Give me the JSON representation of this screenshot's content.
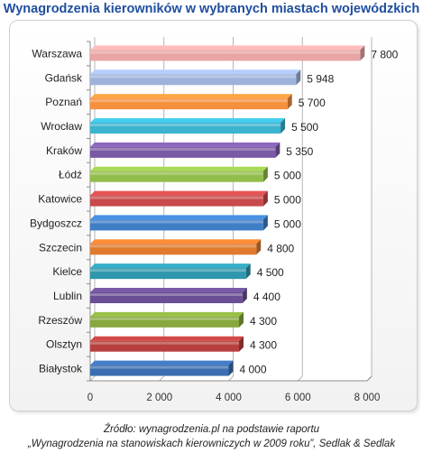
{
  "chart_data": {
    "type": "bar",
    "orientation": "horizontal",
    "title": "Wynagrodzenia kierowników w wybranych miastach wojewódzkich",
    "categories": [
      "Warszawa",
      "Gdańsk",
      "Poznań",
      "Wrocław",
      "Kraków",
      "Łódź",
      "Katowice",
      "Bydgoszcz",
      "Szczecin",
      "Kielce",
      "Lublin",
      "Rzeszów",
      "Olsztyn",
      "Białystok"
    ],
    "values": [
      7800,
      5948,
      5700,
      5500,
      5350,
      5000,
      5000,
      5000,
      4800,
      4500,
      4400,
      4300,
      4300,
      4000
    ],
    "value_labels": [
      "7 800",
      "5 948",
      "5 700",
      "5 500",
      "5 350",
      "5 000",
      "5 000",
      "5 000",
      "4 800",
      "4 500",
      "4 400",
      "4 300",
      "4 300",
      "4 000"
    ],
    "colors": [
      "#e8a5a4",
      "#9eb3db",
      "#f5903d",
      "#3cb3cf",
      "#7a5aa6",
      "#93bd4b",
      "#c84a4a",
      "#3f7fc6",
      "#e07b2f",
      "#2f97ad",
      "#6a4f94",
      "#86a83e",
      "#b7403e",
      "#3b6eb0"
    ],
    "xlim": [
      0,
      8000
    ],
    "xticks": [
      0,
      2000,
      4000,
      6000,
      8000
    ],
    "xtick_labels": [
      "0",
      "2 000",
      "4 000",
      "6 000",
      "8 000"
    ],
    "xlabel": "",
    "ylabel": "",
    "grid": true,
    "legend": "none"
  },
  "source": {
    "line1": "Źródło: wynagrodzenia.pl na podstawie raportu",
    "line2": "„Wynagrodzenia na stanowiskach kierowniczych  w 2009 roku”, Sedlak & Sedlak"
  }
}
